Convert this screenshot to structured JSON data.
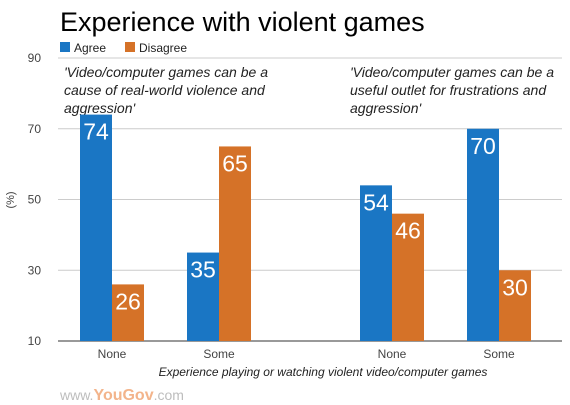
{
  "chart_data": {
    "type": "bar",
    "title": "Experience with violent games",
    "xlabel": "Experience playing or watching violent video/computer games",
    "ylabel": "(%)",
    "ylim": [
      10,
      90
    ],
    "yticks": [
      10,
      30,
      50,
      70,
      90
    ],
    "grid": true,
    "legend_position": "top-left",
    "series": [
      {
        "name": "Agree",
        "color": "#1a76c4"
      },
      {
        "name": "Disagree",
        "color": "#d57228"
      }
    ],
    "panels": [
      {
        "annotation": [
          "'Video/computer games can be a",
          "cause of real-world violence and",
          "aggression'"
        ],
        "categories": [
          "None",
          "Some"
        ],
        "values": {
          "Agree": [
            74,
            35
          ],
          "Disagree": [
            26,
            65
          ]
        }
      },
      {
        "annotation": [
          "'Video/computer games can be a",
          "useful outlet for frustrations and",
          "aggression'"
        ],
        "categories": [
          "None",
          "Some"
        ],
        "values": {
          "Agree": [
            54,
            70
          ],
          "Disagree": [
            46,
            30
          ]
        }
      }
    ]
  },
  "logo": {
    "prefix": "www.",
    "brand_a": "You",
    "brand_b": "Gov",
    "suffix": ".com"
  }
}
